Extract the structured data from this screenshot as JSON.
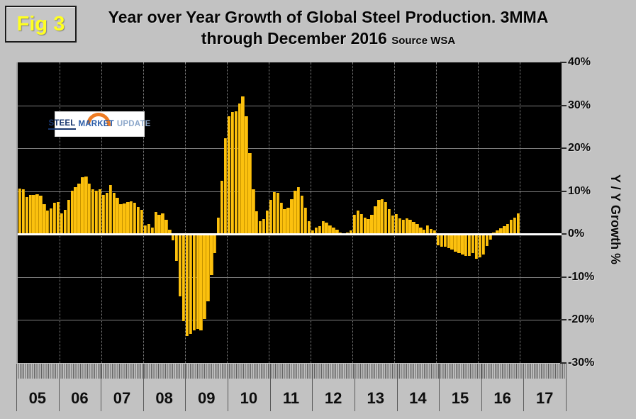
{
  "header": {
    "fig_label": "Fig 3",
    "title_line1": "Year over Year Growth of Global Steel Production. 3MMA",
    "title_line2": "through December 2016",
    "source": "Source WSA"
  },
  "logo": {
    "word1": "STEEL",
    "word2": "MARKET",
    "word3": "UPDATE"
  },
  "colors": {
    "page_background": "#c2c2c2",
    "plot_background": "#000000",
    "bar_fill": "#fcc10e",
    "zero_line": "#ffffff",
    "fig_label_text": "#ffff22",
    "logo_arc_orange": "#ee7b22",
    "logo_steel_navy": "#17356e",
    "logo_market_blue": "#2a5ca8",
    "logo_update_lightblue": "#8da8cb"
  },
  "chart_data": {
    "type": "bar",
    "title": "Year over Year Growth of Global Steel Production. 3MMA through December 2016",
    "source": "Source WSA",
    "xlabel": "",
    "ylabel": "Y / Y Growth %",
    "ylim": [
      -30,
      40
    ],
    "ytick_values": [
      40,
      30,
      20,
      10,
      0,
      -10,
      -20,
      -30
    ],
    "ytick_labels": [
      "40%",
      "30%",
      "20%",
      "10%",
      "0%",
      "-10%",
      "-20%",
      "-30%"
    ],
    "grid": "horizontal-solid-and-yearly-dotted-vertical",
    "legend": "none",
    "frequency": "monthly",
    "categories": [
      "05",
      "06",
      "07",
      "08",
      "09",
      "10",
      "11",
      "12",
      "13",
      "14",
      "15",
      "16",
      "17"
    ],
    "series": [
      {
        "name": "Y/Y growth of global steel production, 3MMA (%)",
        "by_year": [
          {
            "label": "05",
            "values": [
              10.6,
              10.4,
              8.7,
              9.1,
              9.2,
              9.3,
              8.9,
              7.0,
              5.5,
              6.0,
              7.3,
              7.4
            ]
          },
          {
            "label": "06",
            "values": [
              4.9,
              5.6,
              7.9,
              10.2,
              10.9,
              11.7,
              13.2,
              13.5,
              11.8,
              10.5,
              10.2,
              10.4
            ]
          },
          {
            "label": "07",
            "values": [
              9.2,
              9.6,
              11.4,
              9.7,
              8.5,
              7.0,
              7.1,
              7.4,
              7.7,
              7.3,
              6.3,
              5.6
            ]
          },
          {
            "label": "08",
            "values": [
              2.1,
              2.3,
              1.6,
              5.1,
              4.5,
              4.8,
              3.3,
              1.0,
              -1.5,
              -6.3,
              -14.5,
              -20.3
            ]
          },
          {
            "label": "09",
            "values": [
              -23.8,
              -23.2,
              -22.4,
              -22.1,
              -22.4,
              -19.7,
              -15.7,
              -9.6,
              -4.4,
              3.8,
              12.5,
              22.3
            ]
          },
          {
            "label": "10",
            "values": [
              27.4,
              28.4,
              28.6,
              30.5,
              32.0,
              27.5,
              18.8,
              10.5,
              5.4,
              3.0,
              3.5,
              5.5
            ]
          },
          {
            "label": "11",
            "values": [
              7.9,
              9.8,
              9.7,
              7.3,
              5.8,
              6.1,
              8.1,
              10.1,
              11.0,
              9.0,
              6.1,
              3.0
            ]
          },
          {
            "label": "12",
            "values": [
              0.9,
              1.5,
              1.8,
              3.0,
              2.7,
              2.1,
              1.5,
              1.0,
              0.3,
              0.2,
              0.4,
              0.9
            ]
          },
          {
            "label": "13",
            "values": [
              4.5,
              5.5,
              4.6,
              3.8,
              3.5,
              4.5,
              6.5,
              8.0,
              8.2,
              7.5,
              5.8,
              4.4
            ]
          },
          {
            "label": "14",
            "values": [
              4.6,
              3.7,
              3.3,
              3.7,
              3.4,
              2.9,
              2.3,
              1.6,
              1.0,
              2.0,
              1.2,
              0.8
            ]
          },
          {
            "label": "15",
            "values": [
              -2.6,
              -3.0,
              -2.9,
              -3.3,
              -3.6,
              -4.1,
              -4.4,
              -4.7,
              -5.0,
              -5.1,
              -4.4,
              -5.8
            ]
          },
          {
            "label": "16",
            "values": [
              -5.4,
              -4.8,
              -2.8,
              -1.2,
              0.4,
              0.8,
              1.3,
              1.9,
              2.4,
              3.4,
              3.9,
              4.8
            ]
          },
          {
            "label": "17",
            "values": []
          }
        ]
      }
    ]
  }
}
